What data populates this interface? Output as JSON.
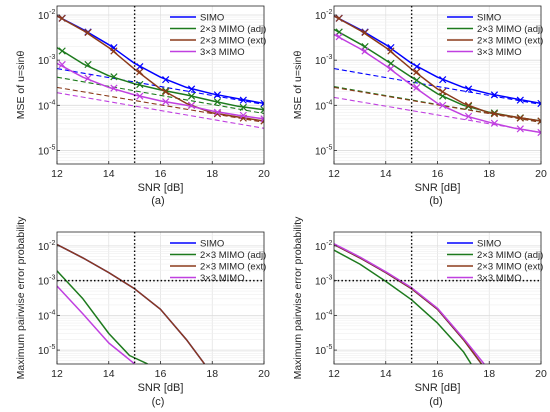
{
  "chart_data": [
    {
      "id": "a",
      "type": "line",
      "caption": "(a)",
      "xlabel": "SNR [dB]",
      "ylabel": "MSE of u=sinθ",
      "xlim": [
        12,
        20
      ],
      "ylim_exp": [
        -5.3,
        -1.8
      ],
      "x_ticks": [
        12,
        14,
        16,
        18,
        20
      ],
      "y_ticks": [
        -5,
        -4,
        -3,
        -2
      ],
      "grid": true,
      "legend_position": "top-right",
      "ref_x": 15,
      "ref_y_exp": null,
      "series": [
        {
          "name": "SIMO",
          "color": "#0000ff",
          "solid": {
            "x": [
              12,
              13,
              14,
              15,
              16,
              17,
              18,
              19,
              20
            ],
            "y": [
              0.0095,
              0.0048,
              0.0022,
              0.00085,
              0.00042,
              0.00025,
              0.00018,
              0.00014,
              0.00011
            ]
          },
          "dashed": {
            "x": [
              12,
              20
            ],
            "y": [
              0.00065,
              0.000105
            ]
          },
          "markers": {
            "x": [
              12.2,
              13.2,
              14.2,
              15.2,
              16.2,
              17.2,
              18.2,
              19.2,
              20
            ],
            "y": [
              0.0085,
              0.0042,
              0.0019,
              0.00072,
              0.00037,
              0.00023,
              0.00017,
              0.00013,
              0.00011
            ]
          }
        },
        {
          "name": "2×3 MIMO (adj)",
          "color": "#1d7a1d",
          "solid": {
            "x": [
              12,
              13,
              14,
              15,
              16,
              17,
              18,
              19,
              20
            ],
            "y": [
              0.0019,
              0.00083,
              0.00045,
              0.0003,
              0.00022,
              0.00017,
              0.000125,
              9.5e-05,
              8e-05
            ]
          },
          "dashed": {
            "x": [
              12,
              20
            ],
            "y": [
              0.00042,
              6.6e-05
            ]
          },
          "markers": {
            "x": [
              12.2,
              13.2,
              14.2,
              15.2,
              16.2,
              17.2,
              18.2,
              19.2,
              20
            ],
            "y": [
              0.0016,
              0.0008,
              0.00043,
              0.00029,
              0.00021,
              0.00016,
              0.00012,
              9e-05,
              8e-05
            ]
          }
        },
        {
          "name": "2×3 MIMO (ext)",
          "color": "#8b3a1a",
          "solid": {
            "x": [
              12,
              13,
              14,
              15,
              16,
              17,
              18,
              19,
              20
            ],
            "y": [
              0.0095,
              0.0046,
              0.0019,
              0.00063,
              0.00023,
              0.00011,
              6.8e-05,
              5.5e-05,
              4.5e-05
            ]
          },
          "dashed": {
            "x": [
              12,
              20
            ],
            "y": [
              0.00025,
              4.2e-05
            ]
          },
          "markers": {
            "x": [
              12.2,
              13.2,
              14.2,
              15.2,
              16.2,
              17.2,
              18.2,
              19.2,
              20
            ],
            "y": [
              0.0085,
              0.0041,
              0.0016,
              0.00055,
              0.0002,
              0.0001,
              6.5e-05,
              5.2e-05,
              4.5e-05
            ]
          }
        },
        {
          "name": "3×3 MIMO",
          "color": "#c040e0",
          "solid": {
            "x": [
              12,
              13,
              14,
              15,
              16,
              17,
              18,
              19,
              20
            ],
            "y": [
              0.00085,
              0.00042,
              0.00025,
              0.00017,
              0.000125,
              0.0001,
              7.5e-05,
              6e-05,
              5e-05
            ]
          },
          "dashed": {
            "x": [
              12,
              20
            ],
            "y": [
              0.00019,
              3.1e-05
            ]
          },
          "markers": {
            "x": [
              12.2,
              13.2,
              14.2,
              15.2,
              16.2,
              17.2,
              18.2,
              19.2,
              20
            ],
            "y": [
              0.0008,
              0.0004,
              0.00024,
              0.00016,
              0.00012,
              0.0001,
              7e-05,
              6e-05,
              5e-05
            ]
          }
        }
      ]
    },
    {
      "id": "b",
      "type": "line",
      "caption": "(b)",
      "xlabel": "SNR [dB]",
      "ylabel": "MSE of u=sinθ",
      "xlim": [
        12,
        20
      ],
      "ylim_exp": [
        -5.3,
        -1.8
      ],
      "x_ticks": [
        12,
        14,
        16,
        18,
        20
      ],
      "y_ticks": [
        -5,
        -4,
        -3,
        -2
      ],
      "grid": true,
      "legend_position": "top-right",
      "ref_x": 15,
      "ref_y_exp": null,
      "series": [
        {
          "name": "SIMO",
          "color": "#0000ff",
          "solid": {
            "x": [
              12,
              13,
              14,
              15,
              16,
              17,
              18,
              19,
              20
            ],
            "y": [
              0.0095,
              0.0048,
              0.0022,
              0.00085,
              0.00042,
              0.00025,
              0.00018,
              0.00014,
              0.00011
            ]
          },
          "dashed": {
            "x": [
              12,
              20
            ],
            "y": [
              0.00065,
              0.000105
            ]
          },
          "markers": {
            "x": [
              12.2,
              13.2,
              14.2,
              15.2,
              16.2,
              17.2,
              18.2,
              19.2,
              20
            ],
            "y": [
              0.0085,
              0.0042,
              0.0019,
              0.00072,
              0.00037,
              0.00023,
              0.00017,
              0.00013,
              0.00011
            ]
          }
        },
        {
          "name": "2×3 MIMO (adj)",
          "color": "#1d7a1d",
          "solid": {
            "x": [
              12,
              13,
              14,
              15,
              16,
              17,
              18,
              19,
              20
            ],
            "y": [
              0.0048,
              0.0023,
              0.001,
              0.00042,
              0.00018,
              0.0001,
              7e-05,
              5.5e-05,
              4.5e-05
            ]
          },
          "dashed": {
            "x": [
              12,
              20
            ],
            "y": [
              0.00026,
              4.2e-05
            ]
          },
          "markers": {
            "x": [
              12.2,
              13.2,
              14.2,
              15.2,
              16.2,
              17.2,
              18.2,
              19.2,
              20
            ],
            "y": [
              0.0042,
              0.002,
              0.00085,
              0.00036,
              0.00016,
              9.5e-05,
              6.8e-05,
              5.3e-05,
              4.5e-05
            ]
          }
        },
        {
          "name": "2×3 MIMO (ext)",
          "color": "#8b3a1a",
          "solid": {
            "x": [
              12,
              13,
              14,
              15,
              16,
              17,
              18,
              19,
              20
            ],
            "y": [
              0.0095,
              0.0046,
              0.0019,
              0.00063,
              0.00023,
              0.00011,
              6.8e-05,
              5.5e-05,
              4.5e-05
            ]
          },
          "dashed": {
            "x": [
              12,
              20
            ],
            "y": [
              0.00025,
              4.2e-05
            ]
          },
          "markers": {
            "x": [
              12.2,
              13.2,
              14.2,
              15.2,
              16.2,
              17.2,
              18.2,
              19.2,
              20
            ],
            "y": [
              0.0085,
              0.0041,
              0.0016,
              0.00055,
              0.0002,
              0.0001,
              6.5e-05,
              5.2e-05,
              4.5e-05
            ]
          }
        },
        {
          "name": "3×3 MIMO",
          "color": "#c040e0",
          "solid": {
            "x": [
              12,
              13,
              14,
              15,
              16,
              17,
              18,
              19,
              20
            ],
            "y": [
              0.0037,
              0.0018,
              0.00075,
              0.00028,
              0.00011,
              6e-05,
              4.2e-05,
              3.1e-05,
              2.5e-05
            ]
          },
          "dashed": {
            "x": [
              12,
              20
            ],
            "y": [
              0.00015,
              2.5e-05
            ]
          },
          "markers": {
            "x": [
              12.2,
              13.2,
              14.2,
              15.2,
              16.2,
              17.2,
              18.2,
              19.2,
              20
            ],
            "y": [
              0.0033,
              0.0016,
              0.00065,
              0.00025,
              0.0001,
              5.7e-05,
              4e-05,
              3e-05,
              2.5e-05
            ]
          }
        }
      ]
    },
    {
      "id": "c",
      "type": "line",
      "caption": "(c)",
      "xlabel": "SNR [dB]",
      "ylabel": "Maximum pairwise error probability",
      "xlim": [
        12,
        20
      ],
      "ylim_exp": [
        -5.4,
        -1.6
      ],
      "x_ticks": [
        12,
        14,
        16,
        18,
        20
      ],
      "y_ticks": [
        -5,
        -4,
        -3,
        -2
      ],
      "grid": true,
      "legend_position": "top-right",
      "ref_x": 15,
      "ref_y_exp": -3,
      "series": [
        {
          "name": "SIMO",
          "color": "#0000ff",
          "solid": {
            "x": [
              12,
              13,
              14,
              15,
              16,
              17,
              17.7
            ],
            "y": [
              0.011,
              0.0045,
              0.0017,
              0.00058,
              0.00015,
              2e-05,
              4e-06
            ]
          }
        },
        {
          "name": "2×3 MIMO (adj)",
          "color": "#1d7a1d",
          "solid": {
            "x": [
              12,
              13,
              14,
              14.8,
              15.5
            ],
            "y": [
              0.0019,
              0.0003,
              3e-05,
              7e-06,
              4e-06
            ]
          }
        },
        {
          "name": "2×3 MIMO (ext)",
          "color": "#8b3a1a",
          "solid": {
            "x": [
              12,
              13,
              14,
              15,
              16,
              17,
              17.7
            ],
            "y": [
              0.011,
              0.0045,
              0.0017,
              0.00058,
              0.00015,
              2e-05,
              4e-06
            ]
          }
        },
        {
          "name": "3×3 MIMO",
          "color": "#c040e0",
          "solid": {
            "x": [
              12,
              13,
              14,
              14.6,
              15
            ],
            "y": [
              0.0007,
              0.00011,
              1.6e-05,
              7e-06,
              4e-06
            ]
          }
        }
      ]
    },
    {
      "id": "d",
      "type": "line",
      "caption": "(d)",
      "xlabel": "SNR [dB]",
      "ylabel": "Maximum pairwise error probability",
      "xlim": [
        12,
        20
      ],
      "ylim_exp": [
        -5.4,
        -1.6
      ],
      "x_ticks": [
        12,
        14,
        16,
        18,
        20
      ],
      "y_ticks": [
        -5,
        -4,
        -3,
        -2
      ],
      "grid": true,
      "legend_position": "top-right",
      "ref_x": 15,
      "ref_y_exp": -3,
      "series": [
        {
          "name": "SIMO",
          "color": "#0000ff",
          "solid": {
            "x": [
              12,
              13,
              14,
              15,
              16,
              17,
              17.7
            ],
            "y": [
              0.011,
              0.0045,
              0.0017,
              0.00058,
              0.00015,
              2e-05,
              4e-06
            ]
          }
        },
        {
          "name": "2×3 MIMO (adj)",
          "color": "#1d7a1d",
          "solid": {
            "x": [
              12,
              13,
              14,
              15,
              16,
              17,
              17.3
            ],
            "y": [
              0.0075,
              0.003,
              0.00095,
              0.00028,
              6e-05,
              9e-06,
              4e-06
            ]
          }
        },
        {
          "name": "2×3 MIMO (ext)",
          "color": "#8b3a1a",
          "solid": {
            "x": [
              12,
              13,
              14,
              15,
              16,
              17,
              17.7
            ],
            "y": [
              0.011,
              0.0045,
              0.0017,
              0.00058,
              0.00015,
              2e-05,
              4e-06
            ]
          }
        },
        {
          "name": "3×3 MIMO",
          "color": "#c040e0",
          "solid": {
            "x": [
              12,
              13,
              14,
              15,
              16,
              17,
              17.8
            ],
            "y": [
              0.0115,
              0.0048,
              0.0018,
              0.00062,
              0.00016,
              2.2e-05,
              4e-06
            ]
          }
        }
      ]
    }
  ]
}
